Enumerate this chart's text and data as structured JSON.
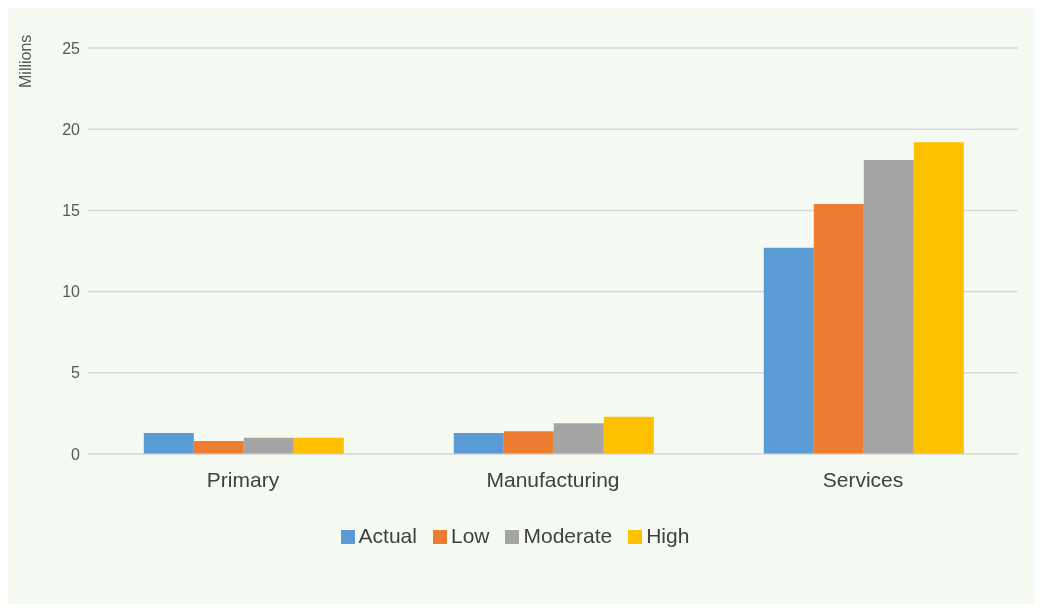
{
  "chart_data": {
    "type": "bar",
    "ylabel": "Millions",
    "categories": [
      "Primary",
      "Manufacturing",
      "Services"
    ],
    "series": [
      {
        "name": "Actual",
        "color": "#5b9bd5",
        "values": [
          1.3,
          1.3,
          12.7
        ]
      },
      {
        "name": "Low",
        "color": "#ed7d31",
        "values": [
          0.8,
          1.4,
          15.4
        ]
      },
      {
        "name": "Moderate",
        "color": "#a5a5a5",
        "values": [
          1.0,
          1.9,
          18.1
        ]
      },
      {
        "name": "High",
        "color": "#ffc000",
        "values": [
          1.0,
          2.3,
          19.2
        ]
      }
    ],
    "ylim": [
      0,
      25
    ],
    "yticks": [
      0,
      5,
      10,
      15,
      20,
      25
    ],
    "grid": "y",
    "legend": "bottom"
  }
}
